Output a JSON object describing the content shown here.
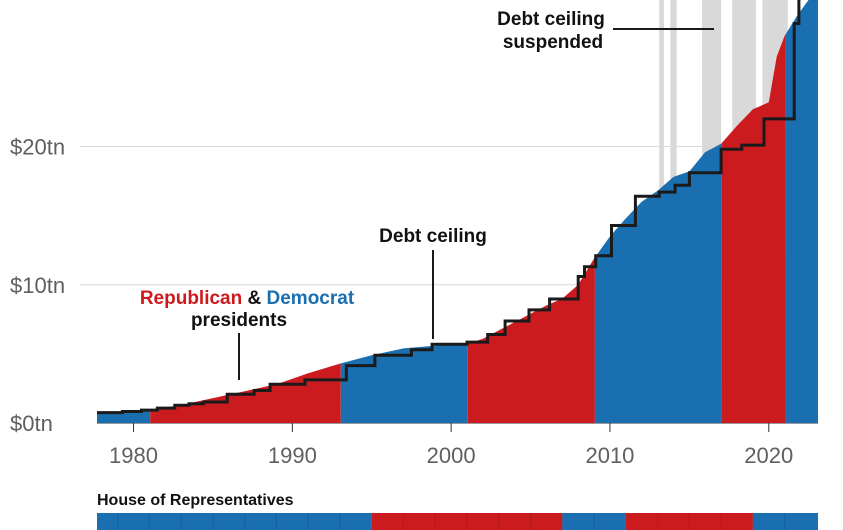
{
  "chart_data": {
    "type": "area",
    "x_unit": "year",
    "y_unit": "US$ trillion",
    "xlim": [
      1977.7,
      2023.1
    ],
    "ylim": [
      0,
      30.6
    ],
    "y_ticks": [
      {
        "value": 0,
        "label": "$0tn"
      },
      {
        "value": 10,
        "label": "$10tn"
      },
      {
        "value": 20,
        "label": "$20tn"
      }
    ],
    "x_ticks": [
      {
        "value": 1980,
        "label": "1980"
      },
      {
        "value": 1990,
        "label": "1990"
      },
      {
        "value": 2000,
        "label": "2000"
      },
      {
        "value": 2010,
        "label": "2010"
      },
      {
        "value": 2020,
        "label": "2020"
      }
    ],
    "grid": true,
    "colors": {
      "republican": "#cc1b1f",
      "democrat": "#1a6fb0",
      "suspended": "#d9d9d9",
      "ceiling_line": "#1a1a1a",
      "grid": "#d9d9d9"
    },
    "debt": [
      [
        1977.7,
        0.7
      ],
      [
        1981,
        0.93
      ],
      [
        1983,
        1.3
      ],
      [
        1985,
        1.8
      ],
      [
        1987,
        2.3
      ],
      [
        1989,
        2.8
      ],
      [
        1991,
        3.6
      ],
      [
        1993,
        4.3
      ],
      [
        1995,
        4.9
      ],
      [
        1997,
        5.4
      ],
      [
        1999,
        5.6
      ],
      [
        2001,
        5.7
      ],
      [
        2002,
        6.1
      ],
      [
        2003,
        6.7
      ],
      [
        2004,
        7.3
      ],
      [
        2005,
        7.9
      ],
      [
        2006,
        8.5
      ],
      [
        2007,
        9.0
      ],
      [
        2008,
        10.0
      ],
      [
        2009,
        11.9
      ],
      [
        2010,
        13.5
      ],
      [
        2011,
        14.8
      ],
      [
        2012,
        16.0
      ],
      [
        2013,
        16.8
      ],
      [
        2014,
        17.8
      ],
      [
        2015,
        18.2
      ],
      [
        2016,
        19.6
      ],
      [
        2017,
        20.2
      ],
      [
        2018,
        21.5
      ],
      [
        2019,
        22.7
      ],
      [
        2020,
        23.2
      ],
      [
        2020.5,
        26.5
      ],
      [
        2021,
        28.0
      ],
      [
        2021.8,
        29.5
      ],
      [
        2022.5,
        30.8
      ],
      [
        2023.1,
        31.4
      ]
    ],
    "presidency_periods": [
      {
        "party": "Democrat",
        "start": 1977.7,
        "end": 1981.05
      },
      {
        "party": "Republican",
        "start": 1981.05,
        "end": 1993.05
      },
      {
        "party": "Democrat",
        "start": 1993.05,
        "end": 2001.05
      },
      {
        "party": "Republican",
        "start": 2001.05,
        "end": 2009.05
      },
      {
        "party": "Democrat",
        "start": 2009.05,
        "end": 2017.05
      },
      {
        "party": "Republican",
        "start": 2017.05,
        "end": 2021.05
      },
      {
        "party": "Democrat",
        "start": 2021.05,
        "end": 2023.1
      }
    ],
    "suspension_periods": [
      [
        2013.1,
        2013.4
      ],
      [
        2013.8,
        2014.2
      ],
      [
        2015.8,
        2017.0
      ],
      [
        2017.7,
        2019.2
      ],
      [
        2019.6,
        2021.2
      ]
    ],
    "debt_ceiling": [
      [
        1977.7,
        0.75
      ],
      [
        1979.3,
        0.83
      ],
      [
        1980.5,
        0.93
      ],
      [
        1981.5,
        1.08
      ],
      [
        1982.6,
        1.29
      ],
      [
        1983.5,
        1.39
      ],
      [
        1984.4,
        1.52
      ],
      [
        1985.9,
        2.08
      ],
      [
        1987.6,
        2.35
      ],
      [
        1988.6,
        2.8
      ],
      [
        1990.8,
        3.12
      ],
      [
        1993.4,
        4.15
      ],
      [
        1995.2,
        4.9
      ],
      [
        1997.5,
        5.3
      ],
      [
        1998.8,
        5.7
      ],
      [
        2001.0,
        5.85
      ],
      [
        2002.3,
        6.4
      ],
      [
        2003.4,
        7.38
      ],
      [
        2004.9,
        8.18
      ],
      [
        2006.2,
        8.97
      ],
      [
        2008.0,
        10.6
      ],
      [
        2008.4,
        11.3
      ],
      [
        2009.1,
        12.1
      ],
      [
        2010.1,
        14.29
      ],
      [
        2011.6,
        16.4
      ],
      [
        2013.1,
        16.7
      ],
      [
        2014.1,
        17.2
      ],
      [
        2015.0,
        18.1
      ],
      [
        2017.0,
        19.8
      ],
      [
        2018.3,
        20.1
      ],
      [
        2019.7,
        22.0
      ],
      [
        2021.6,
        28.9
      ],
      [
        2021.9,
        31.4
      ],
      [
        2023.1,
        31.4
      ]
    ],
    "annotations": {
      "debt_ceiling_label": "Debt ceiling",
      "suspended_label_1": "Debt ceiling",
      "suspended_label_2": "suspended",
      "rep_label": "Republican",
      "amp_label": "&",
      "dem_label": "Democrat",
      "presidents_label": "presidents"
    },
    "house_title": "House of Representatives",
    "house_control": [
      {
        "party": "Democrat",
        "start": 1977.7,
        "end": 1995.0
      },
      {
        "party": "Republican",
        "start": 1995.0,
        "end": 2007.0
      },
      {
        "party": "Democrat",
        "start": 2007.0,
        "end": 2011.0
      },
      {
        "party": "Republican",
        "start": 2011.0,
        "end": 2019.0
      },
      {
        "party": "Democrat",
        "start": 2019.0,
        "end": 2023.1
      }
    ]
  }
}
